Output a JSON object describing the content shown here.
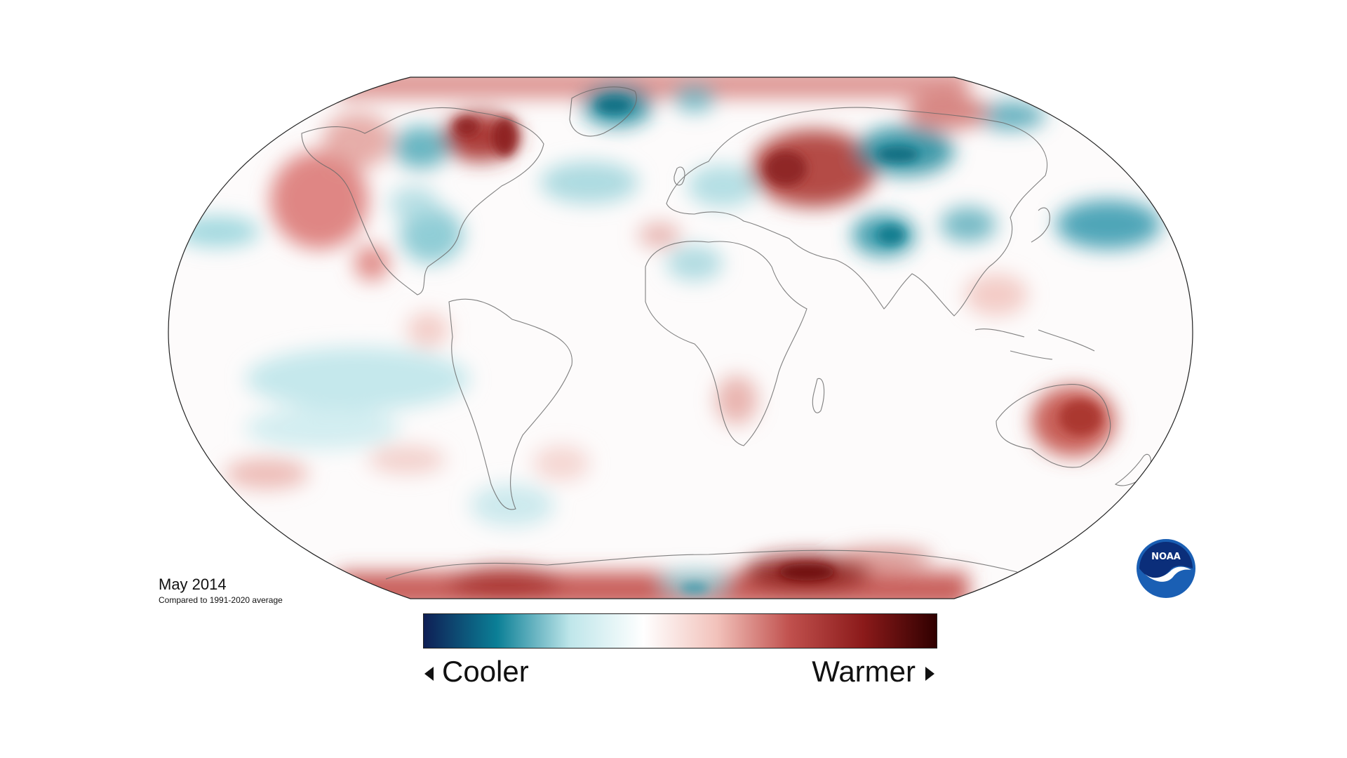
{
  "map": {
    "projection": "robinson-like oval",
    "anomaly_regions_note_colors": {
      "warm_strong": "#8b1a1a",
      "warm": "#cd5c5c",
      "warm_light": "#f2c7c1",
      "neutral": "#ffffff",
      "cool_light": "#bfe6ea",
      "cool": "#4ea9b8",
      "cool_strong": "#127a8f"
    }
  },
  "caption": {
    "title": "May 2014",
    "subtitle": "Compared to 1991-2020 average"
  },
  "legend": {
    "cool_label": "Cooler",
    "warm_label": "Warmer",
    "gradient": [
      "#0f1f55",
      "#0b7f96",
      "#bfe6ea",
      "#ffffff",
      "#f2c2bb",
      "#c0504d",
      "#8b1a1a",
      "#300000"
    ]
  },
  "logo": {
    "text": "NOAA",
    "icon": "noaa-logo-icon",
    "colors": {
      "outer": "#1a5fb4",
      "inner": "#0b2e7a",
      "bird": "#ffffff"
    }
  }
}
